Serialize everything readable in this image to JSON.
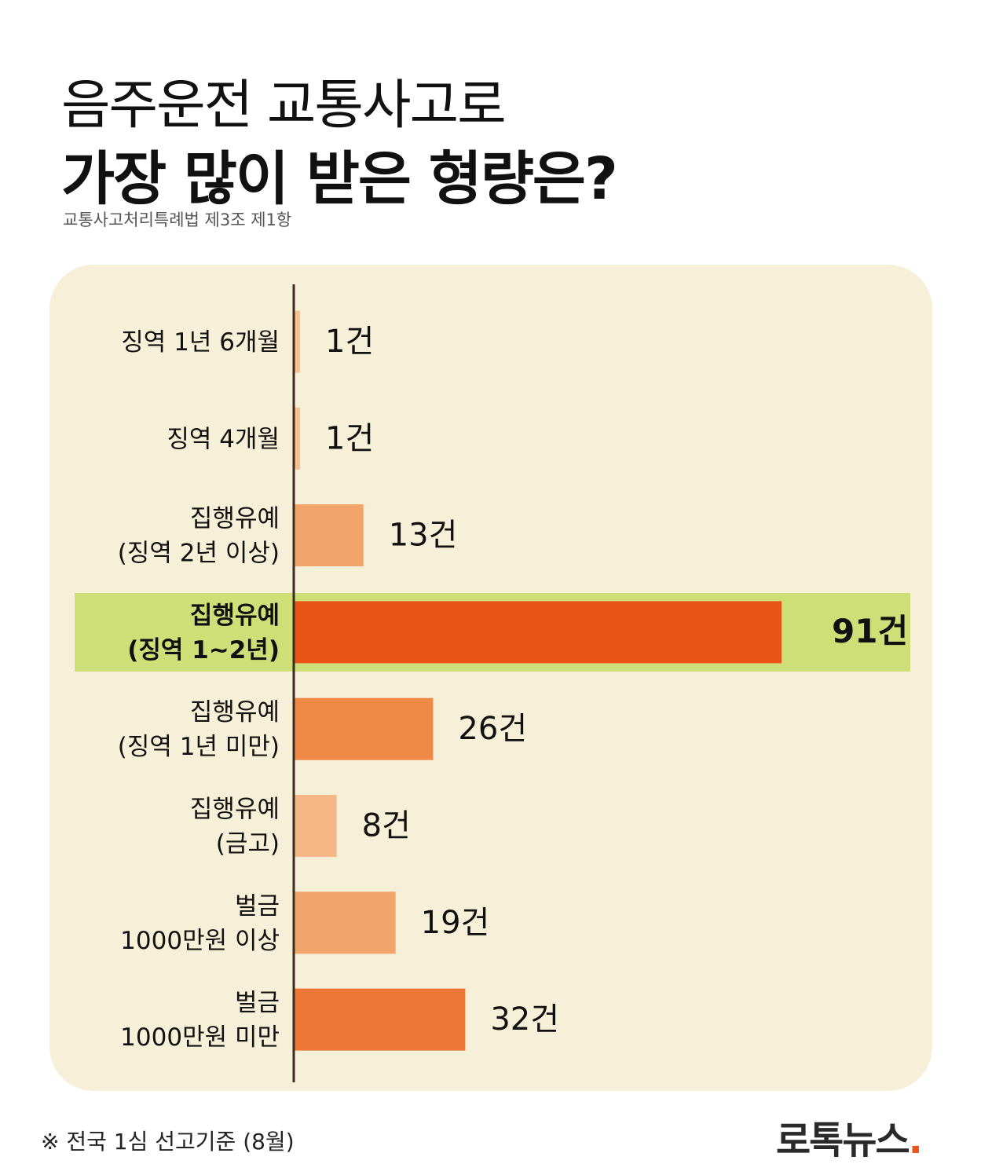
{
  "header": {
    "title_line1": "음주운전 교통사고로",
    "title_line2": "가장 많이 받은 형량은?",
    "subtitle": "교통사고처리특례법 제3조 제1항"
  },
  "footer": {
    "note": "※ 전국 1심 선고기준 (8월)",
    "logo": "로톡뉴스",
    "logo_dot": "."
  },
  "chart_data": {
    "type": "bar",
    "orientation": "horizontal",
    "categories": [
      [
        "징역 1년 6개월"
      ],
      [
        "징역 4개월"
      ],
      [
        "집행유예",
        "(징역 2년 이상)"
      ],
      [
        "집행유예",
        "(징역 1~2년)"
      ],
      [
        "집행유예",
        "(징역 1년 미만)"
      ],
      [
        "집행유예",
        "(금고)"
      ],
      [
        "벌금",
        "1000만원 이상"
      ],
      [
        "벌금",
        "1000만원 미만"
      ]
    ],
    "values": [
      1,
      1,
      13,
      91,
      26,
      8,
      19,
      32
    ],
    "value_labels": [
      "1건",
      "1건",
      "13건",
      "91건",
      "26건",
      "8건",
      "19건",
      "32건"
    ],
    "highlight_index": 3,
    "bar_colors": [
      "#f6c08f",
      "#f6c08f",
      "#f2a56b",
      "#e85415",
      "#ef8948",
      "#f5b785",
      "#f2a56b",
      "#ed7734"
    ],
    "highlight_band_color": "#cddf76",
    "panel_color": "#f7f0d8",
    "axis_color": "#3d2b1f",
    "xlim": [
      0,
      91
    ]
  }
}
